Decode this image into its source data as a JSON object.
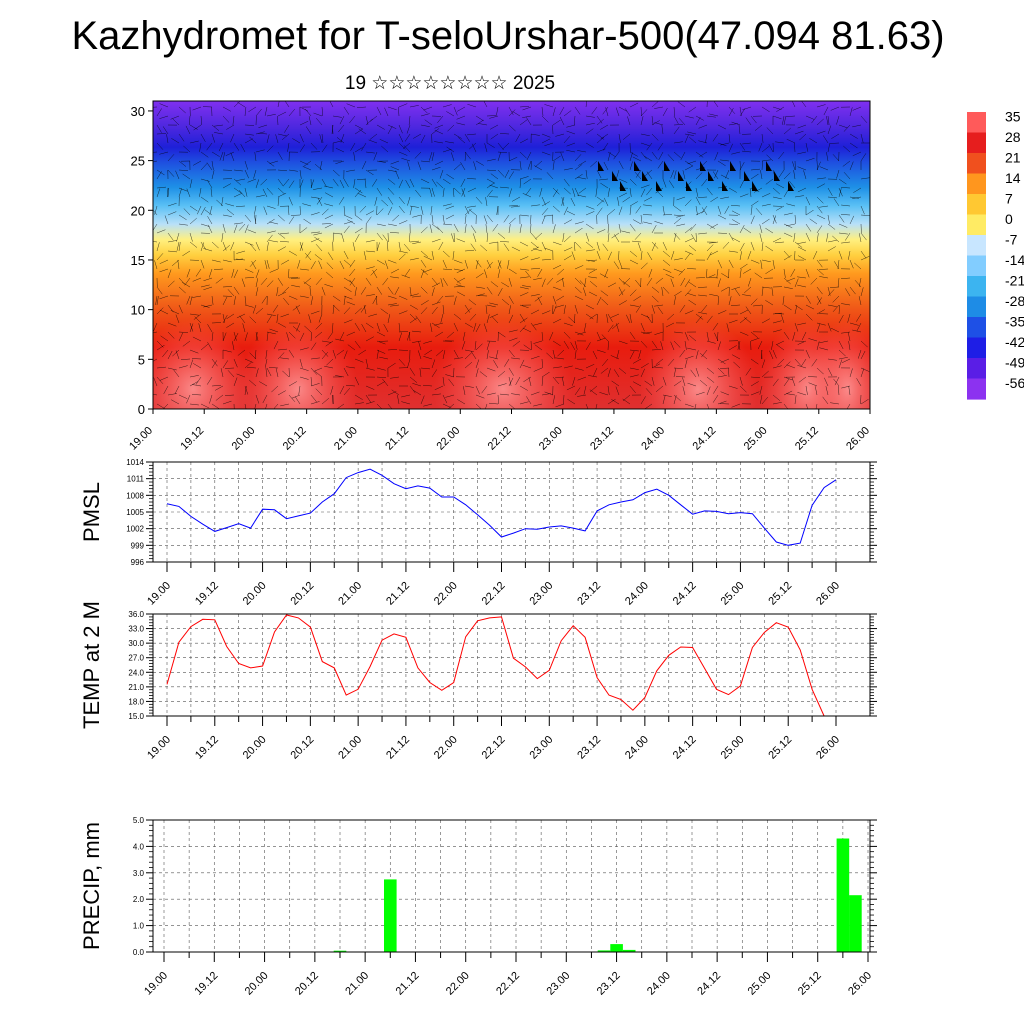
{
  "header": {
    "title": "Kazhydromet for T-seloUrshar-500(47.094 81.63)",
    "subtitle": "19 ☆☆☆☆☆☆☆☆ 2025"
  },
  "colors": {
    "pmsl_line": "#0000ff",
    "temp_line": "#ff0000",
    "precip_bar": "#00ff00",
    "grid": "#555555"
  },
  "chart_data": [
    {
      "type": "heatmap",
      "name": "temperature-height-section",
      "x_tick_labels": [
        "19.00",
        "19.12",
        "20.00",
        "20.12",
        "21.00",
        "21.12",
        "22.00",
        "22.12",
        "23.00",
        "23.12",
        "24.00",
        "24.12",
        "25.00",
        "25.12",
        "26.00"
      ],
      "y_tick_labels": [
        "0",
        "5",
        "10",
        "15",
        "20",
        "25",
        "30"
      ],
      "ylim": [
        0,
        31
      ],
      "colorbar_labels": [
        "35",
        "28",
        "21",
        "14",
        "7",
        "0",
        "-7",
        "-14",
        "-21",
        "-28",
        "-35",
        "-42",
        "-49",
        "-56"
      ],
      "colorbar_colors": [
        "#ff5a5a",
        "#e61e1e",
        "#f0501e",
        "#ff961e",
        "#ffc832",
        "#ffeb64",
        "#c8e6ff",
        "#82cdff",
        "#3cb4f0",
        "#1e8ce6",
        "#1e50e6",
        "#1e1ee6",
        "#5a1ee6",
        "#8c32f0"
      ],
      "wind_barbs": true
    },
    {
      "type": "line",
      "name": "pmsl",
      "ylabel": "PMSL",
      "y_tick_labels": [
        "996",
        "999",
        "1002",
        "1005",
        "1008",
        "1011",
        "1014"
      ],
      "ylim": [
        996,
        1014
      ],
      "x_tick_labels": [
        "19.00",
        "19.12",
        "20.00",
        "20.12",
        "21.00",
        "21.12",
        "22.00",
        "22.12",
        "23.00",
        "23.12",
        "24.00",
        "24.12",
        "25.00",
        "25.12",
        "26.00"
      ],
      "x": [
        0,
        3,
        6,
        9,
        12,
        15,
        18,
        21,
        24,
        27,
        30,
        33,
        36,
        39,
        42,
        45,
        48,
        51,
        54,
        57,
        60,
        63,
        66,
        69,
        72,
        75,
        78,
        81,
        84,
        87,
        90,
        93,
        96,
        99,
        102,
        105,
        108,
        111,
        114,
        117,
        120,
        123,
        126,
        129,
        132,
        135,
        138,
        141,
        144,
        147,
        150,
        153,
        156,
        159,
        162,
        165,
        168
      ],
      "values": [
        1006.5,
        1006,
        1004.2,
        1002.8,
        1001.5,
        1002.2,
        1002.9,
        1002.1,
        1005.5,
        1005.4,
        1003.8,
        1004.3,
        1004.8,
        1006.8,
        1008.3,
        1011.2,
        1012.1,
        1012.7,
        1011.6,
        1010.1,
        1009.2,
        1009.7,
        1009.3,
        1007.7,
        1007.7,
        1006.3,
        1004.5,
        1002.6,
        1000.5,
        1001.2,
        1002,
        1001.9,
        1002.3,
        1002.5,
        1002.1,
        1001.6,
        1005.2,
        1006.3,
        1006.8,
        1007.2,
        1008.5,
        1009.1,
        1008,
        1006.3,
        1004.6,
        1005.2,
        1005.1,
        1004.7,
        1004.9,
        1004.7,
        1002.1,
        999.6,
        999,
        999.4,
        1006.2,
        1009.4,
        1010.8
      ]
    },
    {
      "type": "line",
      "name": "temp-2m",
      "ylabel": "TEMP at 2 M",
      "y_tick_labels": [
        "15.0",
        "18.0",
        "21.0",
        "24.0",
        "27.0",
        "30.0",
        "33.0",
        "36.0"
      ],
      "ylim": [
        15,
        36
      ],
      "x_tick_labels": [
        "19.00",
        "19.12",
        "20.00",
        "20.12",
        "21.00",
        "21.12",
        "22.00",
        "22.12",
        "23.00",
        "23.12",
        "24.00",
        "24.12",
        "25.00",
        "25.12",
        "26.00"
      ],
      "x": [
        0,
        3,
        6,
        9,
        12,
        15,
        18,
        21,
        24,
        27,
        30,
        33,
        36,
        39,
        42,
        45,
        48,
        51,
        54,
        57,
        60,
        63,
        66,
        69,
        72,
        75,
        78,
        81,
        84,
        87,
        90,
        93,
        96,
        99,
        102,
        105,
        108,
        111,
        114,
        117,
        120,
        123,
        126,
        129,
        132,
        135,
        138,
        141,
        144,
        147,
        150,
        153,
        156,
        159,
        162,
        165
      ],
      "values": [
        21.5,
        30.2,
        33.4,
        34.9,
        34.8,
        29.3,
        25.8,
        24.9,
        25.3,
        32.3,
        35.8,
        35.2,
        33.3,
        26.2,
        24.9,
        19.3,
        20.5,
        25.2,
        30.6,
        31.9,
        31.2,
        24.9,
        21.9,
        20.3,
        21.9,
        31.3,
        34.6,
        35.2,
        35.4,
        26.9,
        25.1,
        22.7,
        24.4,
        30.5,
        33.6,
        31.2,
        22.9,
        19.3,
        18.4,
        16.2,
        18.8,
        24.3,
        27.5,
        29.2,
        29.1,
        24.8,
        20.5,
        19.4,
        21.2,
        29.1,
        32.2,
        34.2,
        33.3,
        28.6,
        20.5,
        15.0
      ]
    },
    {
      "type": "bar",
      "name": "precip",
      "ylabel": "PRECIP, mm",
      "y_tick_labels": [
        "0.0",
        "1.0",
        "2.0",
        "3.0",
        "4.0",
        "5.0"
      ],
      "ylim": [
        0,
        5
      ],
      "x_tick_labels": [
        "19.00",
        "19.12",
        "20.00",
        "20.12",
        "21.00",
        "21.12",
        "22.00",
        "22.12",
        "23.00",
        "23.12",
        "24.00",
        "24.12",
        "25.00",
        "25.12",
        "26.00"
      ],
      "bars": [
        {
          "x": 42,
          "value": 0.05
        },
        {
          "x": 54,
          "value": 2.75
        },
        {
          "x": 105,
          "value": 0.06
        },
        {
          "x": 108,
          "value": 0.3
        },
        {
          "x": 111,
          "value": 0.08
        },
        {
          "x": 162,
          "value": 4.3
        },
        {
          "x": 165,
          "value": 2.15
        }
      ]
    }
  ]
}
